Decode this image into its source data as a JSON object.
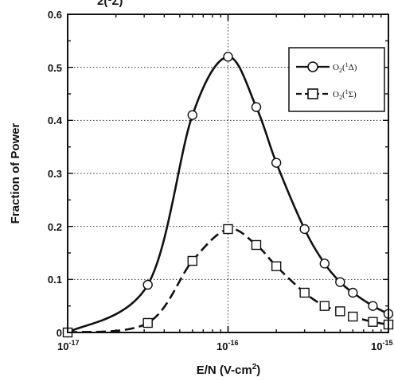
{
  "chart_data": {
    "type": "line",
    "title": "",
    "partial_header_text": "2(¹Σ)",
    "xlabel": "E/N (V-cm",
    "xlabel_sup": "2",
    "xlabel_end": ")",
    "ylabel": "Fraction of Power",
    "x_scale": "log",
    "xlim": [
      1e-17,
      1e-15
    ],
    "ylim": [
      0,
      0.6
    ],
    "grid": true,
    "legend_position": "top-right",
    "x_ticks": [
      {
        "base": "10",
        "exp": "-17"
      },
      {
        "base": "10",
        "exp": "-16"
      },
      {
        "base": "10",
        "exp": "-15"
      }
    ],
    "y_ticks": [
      "0",
      "0.1",
      "0.2",
      "0.3",
      "0.4",
      "0.5",
      "0.6"
    ],
    "series": [
      {
        "name": "O2(1Δ)",
        "legend_main": "O",
        "legend_sub": "2",
        "legend_paren": "(",
        "legend_sup": "1",
        "legend_sym": "Δ",
        "legend_close": ")",
        "marker": "circle",
        "line_style": "solid",
        "x": [
          1e-17,
          3.16e-17,
          6e-17,
          1e-16,
          1.5e-16,
          2e-16,
          3e-16,
          4e-16,
          5e-16,
          6e-16,
          8e-16,
          1e-15
        ],
        "y": [
          0.0,
          0.09,
          0.41,
          0.52,
          0.425,
          0.32,
          0.195,
          0.13,
          0.095,
          0.075,
          0.05,
          0.035
        ]
      },
      {
        "name": "O2(1Σ)",
        "legend_main": "O",
        "legend_sub": "2",
        "legend_paren": "(",
        "legend_sup": "1",
        "legend_sym": "Σ",
        "legend_close": ")",
        "marker": "square",
        "line_style": "dashed",
        "x": [
          1e-17,
          3.16e-17,
          6e-17,
          1e-16,
          1.5e-16,
          2e-16,
          3e-16,
          4e-16,
          5e-16,
          6e-16,
          8e-16,
          1e-15
        ],
        "y": [
          0.0,
          0.018,
          0.135,
          0.195,
          0.165,
          0.125,
          0.075,
          0.05,
          0.04,
          0.03,
          0.02,
          0.015
        ]
      }
    ]
  },
  "colors": {
    "line": "#111111",
    "grid": "#333333",
    "background": "#ffffff"
  }
}
